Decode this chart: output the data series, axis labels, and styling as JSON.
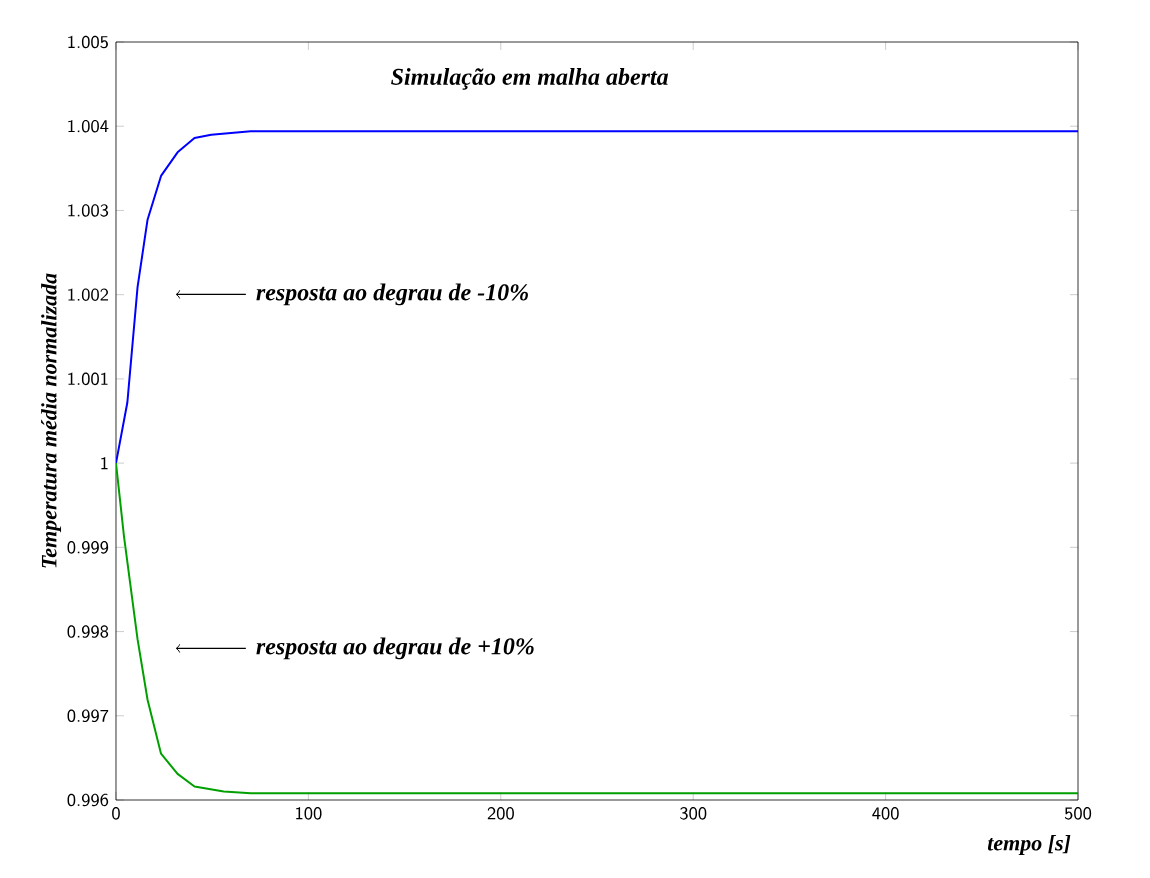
{
  "chart_data": {
    "type": "line",
    "title": "Simulação em malha aberta",
    "xlabel": "tempo [s]",
    "ylabel": "Temperatura média normalizada",
    "xlim": [
      0,
      500
    ],
    "ylim": [
      0.996,
      1.005
    ],
    "xticks": [
      0,
      100,
      200,
      300,
      400,
      500
    ],
    "yticks": [
      0.996,
      0.997,
      0.998,
      0.999,
      1,
      1.001,
      1.002,
      1.003,
      1.004,
      1.005
    ],
    "grid": false,
    "marker": "none",
    "line_style": "solid",
    "series": [
      {
        "color": "#0000ff",
        "x": [
          0,
          5.9,
          11.2,
          16.4,
          23.4,
          32,
          40.8,
          49.5,
          70,
          500
        ],
        "values": [
          1.0,
          1.00072,
          1.00209,
          1.00289,
          1.00341,
          1.00369,
          1.00386,
          1.0039,
          1.00394,
          1.00394
        ]
      },
      {
        "color": "#00a000",
        "x": [
          0,
          4.2,
          11.2,
          16.4,
          23.4,
          32,
          40.8,
          56,
          70,
          500
        ],
        "values": [
          1.0,
          0.99912,
          0.99791,
          0.99719,
          0.99655,
          0.99631,
          0.99616,
          0.9961,
          0.99608,
          0.99608
        ]
      }
    ],
    "annotations": [
      "resposta ao degrau de -10%",
      "resposta ao degrau de +10%"
    ]
  }
}
